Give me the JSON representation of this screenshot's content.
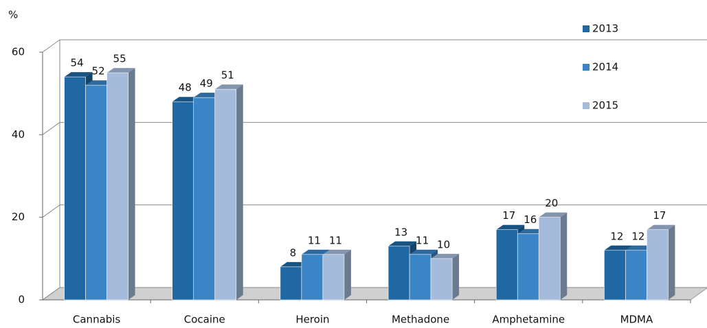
{
  "chart_data": {
    "type": "bar",
    "y_label": "%",
    "categories": [
      "Cannabis",
      "Cocaine",
      "Heroin",
      "Methadone",
      "Amphetamine",
      "MDMA"
    ],
    "series": [
      {
        "name": "2013",
        "color": "#1f68a3",
        "values": [
          54,
          48,
          8,
          13,
          17,
          12
        ]
      },
      {
        "name": "2014",
        "color": "#3b84c6",
        "values": [
          52,
          49,
          11,
          11,
          16,
          12
        ]
      },
      {
        "name": "2015",
        "color": "#a5bbdb",
        "values": [
          55,
          51,
          11,
          10,
          20,
          17
        ]
      }
    ],
    "ylim": [
      0,
      60
    ],
    "yticks": [
      0,
      20,
      40,
      60
    ],
    "grid": true,
    "legend": "top-right"
  }
}
